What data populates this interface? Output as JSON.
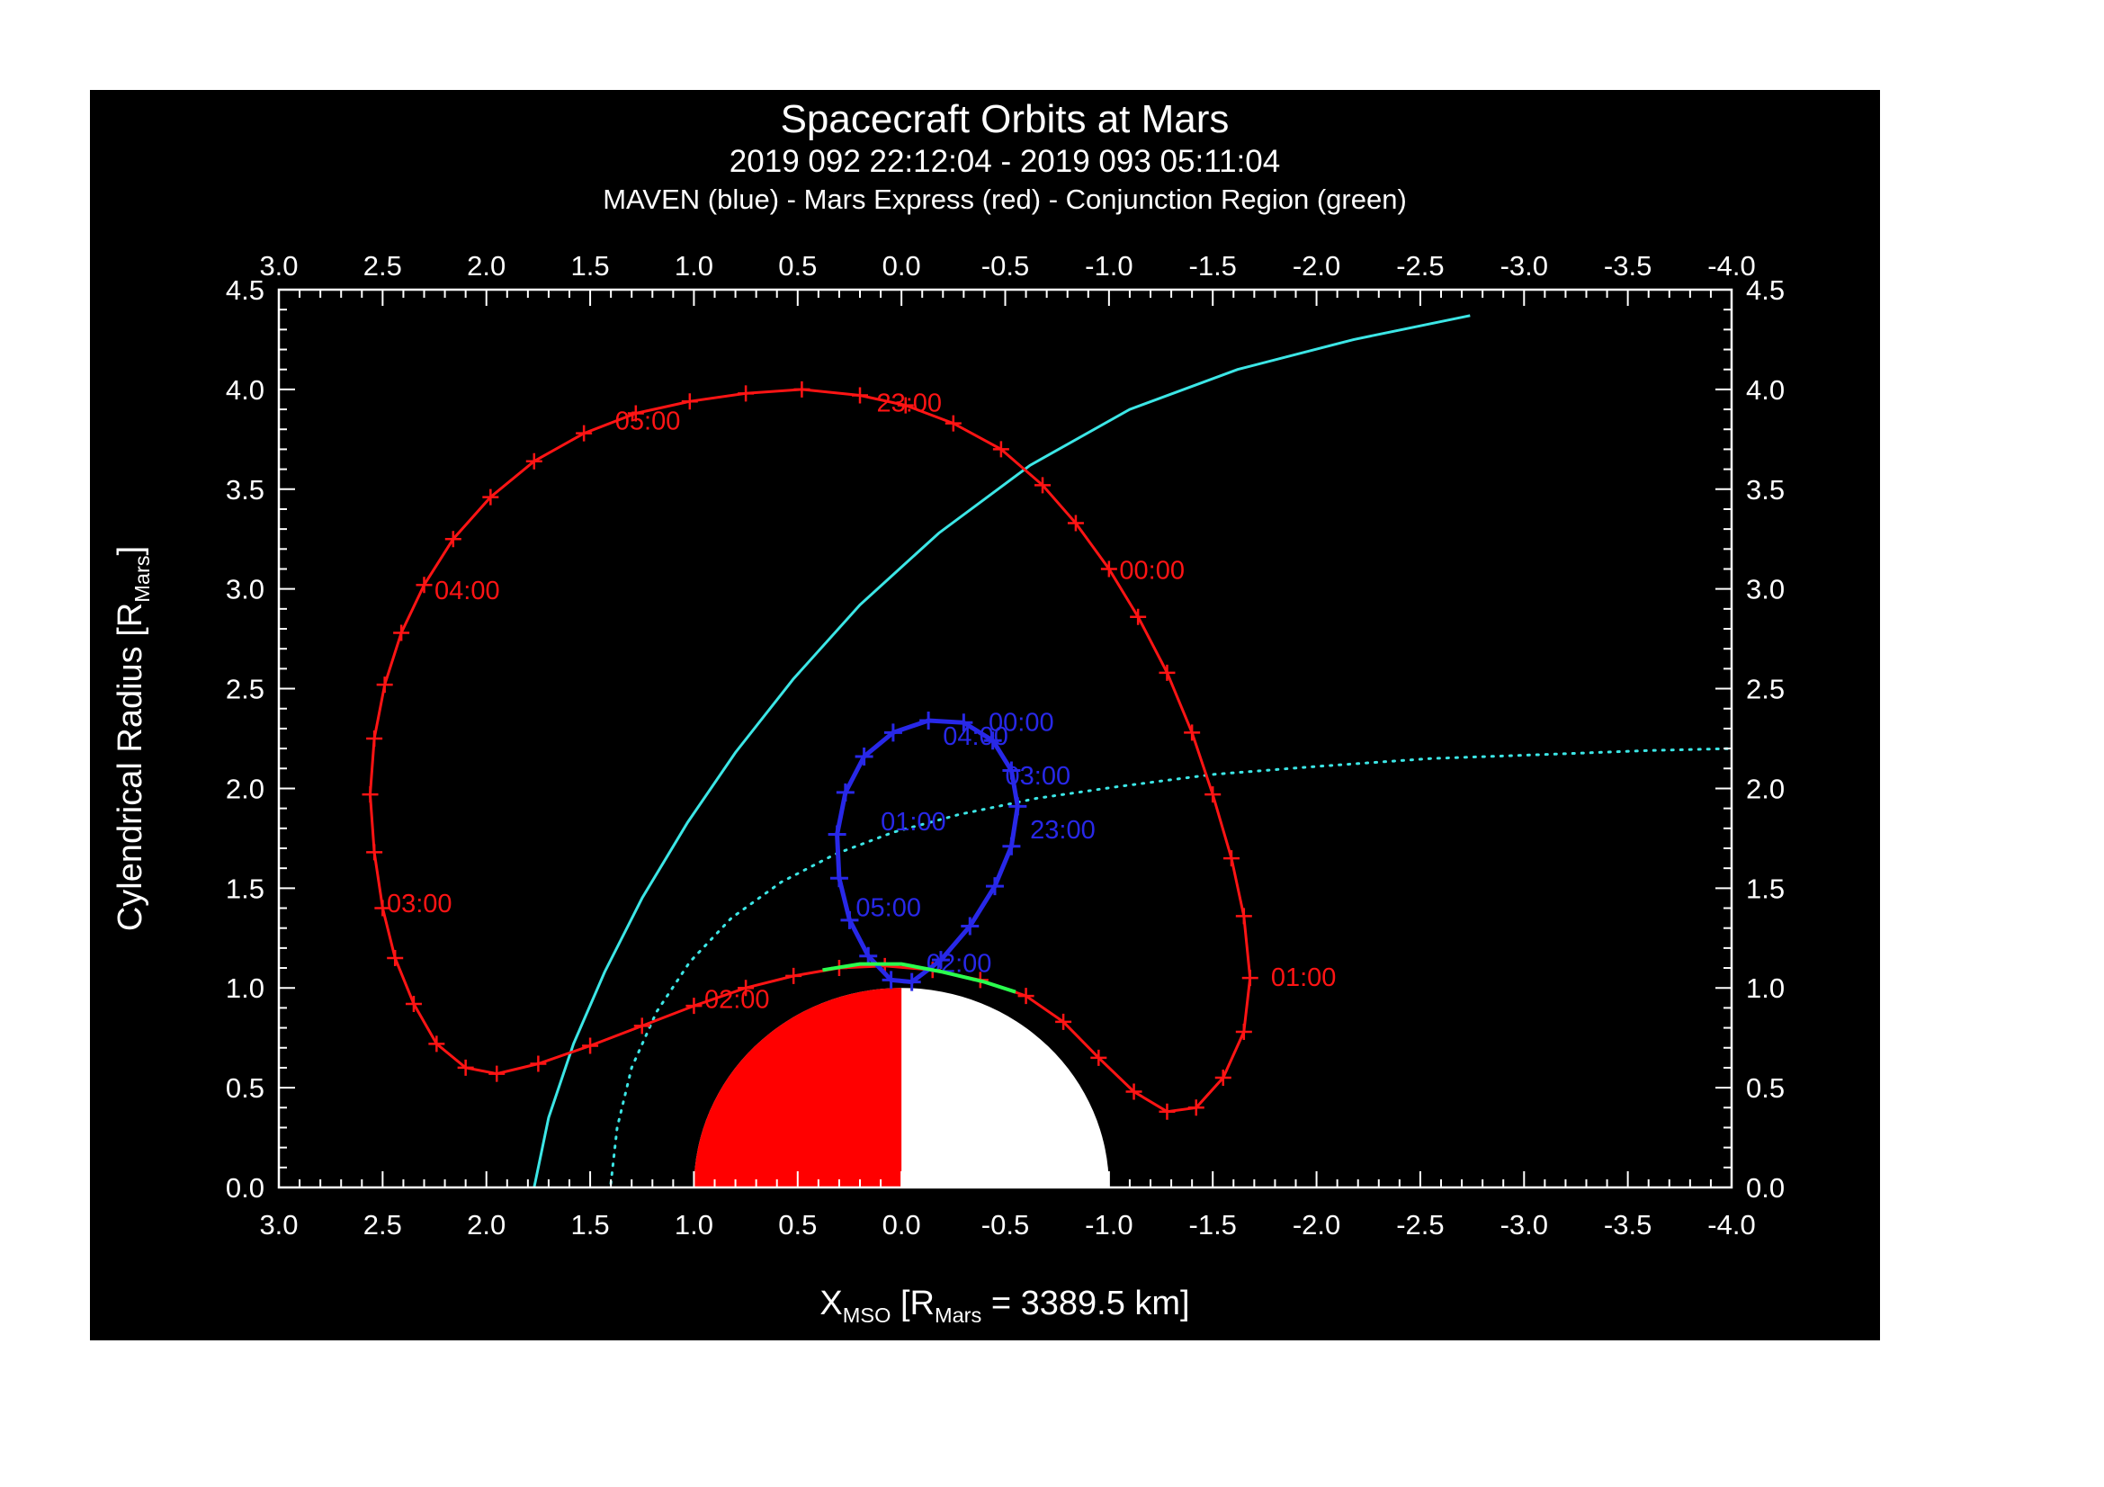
{
  "page": {
    "background": "#ffffff",
    "panel_background": "#000000"
  },
  "chart_data": {
    "type": "line",
    "title": "Spacecraft Orbits at Mars",
    "subtitle": "2019 092 22:12:04 - 2019 093 05:11:04",
    "legend_line": "MAVEN (blue) - Mars Express (red) - Conjunction Region (green)",
    "axis_labels": {
      "y_pre": "Cylendrical Radius [R",
      "y_sub": "Mars",
      "y_post": "]",
      "x_pre": "X",
      "x_sub1": "MSO",
      "x_mid": " [R",
      "x_sub2": "Mars",
      "x_post": " = 3389.5 km]"
    },
    "x_range": [
      3.0,
      -4.0
    ],
    "y_range": [
      0.0,
      4.5
    ],
    "minor_tick_step": 0.1,
    "x_tick_labels": [
      "3.0",
      "2.5",
      "2.0",
      "1.5",
      "1.0",
      "0.5",
      "0.0",
      "-0.5",
      "-1.0",
      "-1.5",
      "-2.0",
      "-2.5",
      "-3.0",
      "-3.5",
      "-4.0"
    ],
    "y_tick_labels": [
      "0.0",
      "0.5",
      "1.0",
      "1.5",
      "2.0",
      "2.5",
      "3.0",
      "3.5",
      "4.0",
      "4.5"
    ],
    "grid": false,
    "mars": {
      "radius": 1.0,
      "sunward_color": "#ff0000",
      "antisunward_color": "#ffffff"
    },
    "series": [
      {
        "name": "bow-shock-curve",
        "legend": "bow shock model",
        "color": "#3ce6e6",
        "style": "solid",
        "width": 3,
        "points": [
          [
            1.77,
            0.0
          ],
          [
            1.7,
            0.35
          ],
          [
            1.58,
            0.72
          ],
          [
            1.43,
            1.08
          ],
          [
            1.25,
            1.45
          ],
          [
            1.03,
            1.83
          ],
          [
            0.8,
            2.18
          ],
          [
            0.52,
            2.55
          ],
          [
            0.2,
            2.92
          ],
          [
            -0.18,
            3.28
          ],
          [
            -0.62,
            3.62
          ],
          [
            -1.1,
            3.9
          ],
          [
            -1.62,
            4.1
          ],
          [
            -2.18,
            4.25
          ],
          [
            -2.74,
            4.37
          ]
        ]
      },
      {
        "name": "mpb-curve",
        "legend": "magnetic pileup boundary model",
        "color": "#3ce6e6",
        "style": "dotted",
        "width": 3,
        "points": [
          [
            1.4,
            0.02
          ],
          [
            1.37,
            0.3
          ],
          [
            1.3,
            0.6
          ],
          [
            1.18,
            0.88
          ],
          [
            1.02,
            1.13
          ],
          [
            0.82,
            1.35
          ],
          [
            0.58,
            1.53
          ],
          [
            0.32,
            1.67
          ],
          [
            0.04,
            1.78
          ],
          [
            -0.28,
            1.87
          ],
          [
            -0.65,
            1.95
          ],
          [
            -1.05,
            2.01
          ],
          [
            -1.5,
            2.07
          ],
          [
            -2.0,
            2.11
          ],
          [
            -2.55,
            2.15
          ],
          [
            -3.1,
            2.17
          ],
          [
            -3.6,
            2.19
          ],
          [
            -4.0,
            2.2
          ]
        ]
      },
      {
        "name": "mars-express-orbit",
        "legend": "Mars Express (red)",
        "color": "#ff1414",
        "style": "solid",
        "width": 3,
        "marker": "plus",
        "marker_size": 9,
        "marker_width": 2.5,
        "closed": true,
        "points": [
          [
            0.2,
            3.97
          ],
          [
            -0.02,
            3.92
          ],
          [
            -0.25,
            3.83
          ],
          [
            -0.48,
            3.7
          ],
          [
            -0.68,
            3.52
          ],
          [
            -0.84,
            3.33
          ],
          [
            -1.0,
            3.1
          ],
          [
            -1.14,
            2.86
          ],
          [
            -1.28,
            2.58
          ],
          [
            -1.4,
            2.28
          ],
          [
            -1.5,
            1.97
          ],
          [
            -1.59,
            1.65
          ],
          [
            -1.65,
            1.36
          ],
          [
            -1.68,
            1.05
          ],
          [
            -1.65,
            0.78
          ],
          [
            -1.55,
            0.55
          ],
          [
            -1.42,
            0.4
          ],
          [
            -1.28,
            0.38
          ],
          [
            -1.12,
            0.48
          ],
          [
            -0.95,
            0.65
          ],
          [
            -0.78,
            0.83
          ],
          [
            -0.6,
            0.96
          ],
          [
            -0.38,
            1.04
          ],
          [
            -0.15,
            1.09
          ],
          [
            0.08,
            1.11
          ],
          [
            0.3,
            1.1
          ],
          [
            0.52,
            1.06
          ],
          [
            0.75,
            1.0
          ],
          [
            1.0,
            0.91
          ],
          [
            1.25,
            0.81
          ],
          [
            1.5,
            0.71
          ],
          [
            1.75,
            0.62
          ],
          [
            1.95,
            0.57
          ],
          [
            2.1,
            0.6
          ],
          [
            2.24,
            0.72
          ],
          [
            2.35,
            0.92
          ],
          [
            2.44,
            1.15
          ],
          [
            2.5,
            1.4
          ],
          [
            2.54,
            1.68
          ],
          [
            2.56,
            1.97
          ],
          [
            2.54,
            2.25
          ],
          [
            2.49,
            2.52
          ],
          [
            2.41,
            2.78
          ],
          [
            2.3,
            3.02
          ],
          [
            2.16,
            3.25
          ],
          [
            1.98,
            3.46
          ],
          [
            1.77,
            3.64
          ],
          [
            1.53,
            3.78
          ],
          [
            1.28,
            3.88
          ],
          [
            1.02,
            3.94
          ],
          [
            0.75,
            3.98
          ],
          [
            0.48,
            4.0
          ]
        ],
        "labels": [
          {
            "t": "23:00",
            "x": 0.12,
            "y": 3.93
          },
          {
            "t": "05:00",
            "x": 1.38,
            "y": 3.84
          },
          {
            "t": "04:00",
            "x": 2.25,
            "y": 2.99
          },
          {
            "t": "03:00",
            "x": 2.48,
            "y": 1.42
          },
          {
            "t": "02:00",
            "x": 0.95,
            "y": 0.94
          },
          {
            "t": "00:00",
            "x": -1.05,
            "y": 3.09
          },
          {
            "t": "01:00",
            "x": -1.78,
            "y": 1.05
          }
        ]
      },
      {
        "name": "maven-orbit",
        "legend": "MAVEN (blue)",
        "color": "#2828e8",
        "style": "solid",
        "width": 5,
        "marker": "plus",
        "marker_size": 10,
        "marker_width": 3,
        "closed": true,
        "points": [
          [
            0.05,
            1.04
          ],
          [
            0.16,
            1.16
          ],
          [
            0.25,
            1.34
          ],
          [
            0.3,
            1.55
          ],
          [
            0.31,
            1.77
          ],
          [
            0.27,
            1.98
          ],
          [
            0.18,
            2.16
          ],
          [
            0.04,
            2.28
          ],
          [
            -0.13,
            2.34
          ],
          [
            -0.3,
            2.33
          ],
          [
            -0.44,
            2.24
          ],
          [
            -0.53,
            2.09
          ],
          [
            -0.56,
            1.91
          ],
          [
            -0.53,
            1.71
          ],
          [
            -0.45,
            1.51
          ],
          [
            -0.33,
            1.31
          ],
          [
            -0.19,
            1.14
          ],
          [
            -0.05,
            1.03
          ]
        ],
        "labels": [
          {
            "t": "00:00",
            "x": -0.42,
            "y": 2.33
          },
          {
            "t": "04:00",
            "x": -0.2,
            "y": 2.26
          },
          {
            "t": "03:00",
            "x": -0.5,
            "y": 2.06
          },
          {
            "t": "23:00",
            "x": -0.62,
            "y": 1.79
          },
          {
            "t": "01:00",
            "x": 0.1,
            "y": 1.83
          },
          {
            "t": "05:00",
            "x": 0.22,
            "y": 1.4
          },
          {
            "t": "02:00",
            "x": -0.12,
            "y": 1.12
          }
        ]
      },
      {
        "name": "conjunction-region",
        "legend": "Conjunction Region (green)",
        "color": "#2aff4e",
        "style": "solid",
        "width": 4,
        "points": [
          [
            0.38,
            1.09
          ],
          [
            0.2,
            1.12
          ],
          [
            0.0,
            1.12
          ],
          [
            -0.2,
            1.08
          ],
          [
            -0.4,
            1.03
          ],
          [
            -0.55,
            0.98
          ]
        ]
      }
    ]
  }
}
